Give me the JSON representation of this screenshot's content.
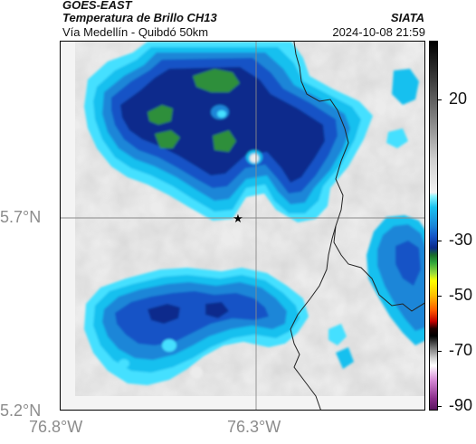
{
  "header": {
    "satellite": "GOES-EAST",
    "product": "Temperatura de Brillo CH13",
    "route": "Vía Medellín - Quibdó 50km",
    "org": "SIATA",
    "datetime": "2024-10-08 21:59"
  },
  "map": {
    "lat_labels": [
      "5.7°N",
      "5.2°N"
    ],
    "lon_labels": [
      "76.8°W",
      "76.3°W"
    ],
    "marker_icon": "star-icon",
    "cloud_colors": {
      "background": "#eeeeee",
      "deep_blue": "#0b2a8c",
      "blue": "#1553c6",
      "mid_blue": "#1a86d8",
      "cyan": "#18c0ef",
      "light_cyan": "#45e0ff",
      "green": "#2f8f3a",
      "border_line": "#222222"
    }
  },
  "colorbar": {
    "tick_labels": [
      "20",
      "-30",
      "-50",
      "-70",
      "-90"
    ],
    "unit_hint": "°C"
  }
}
